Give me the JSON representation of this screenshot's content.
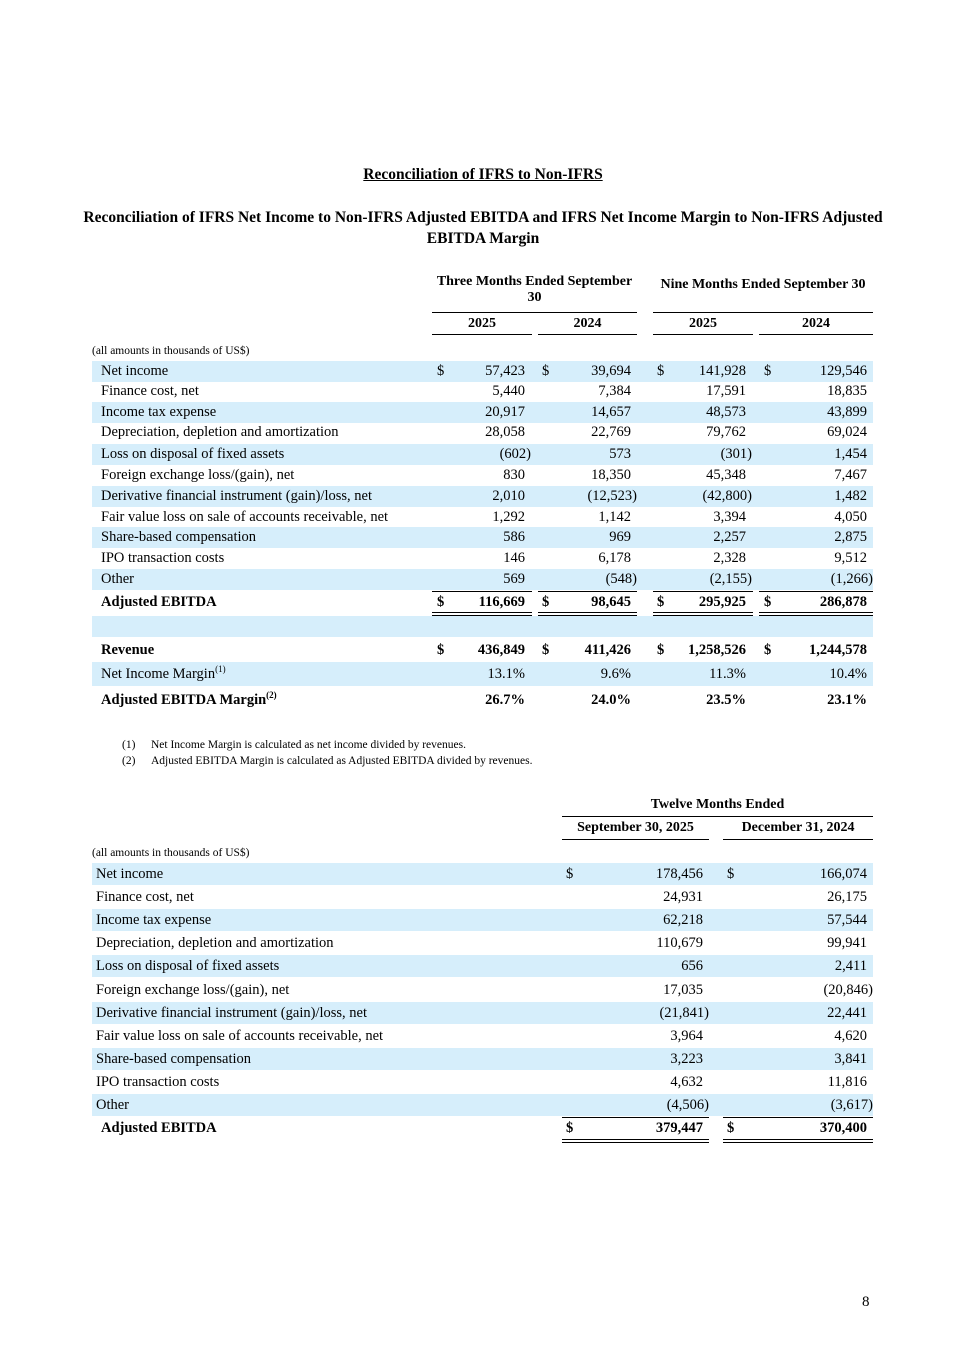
{
  "title": "Reconciliation of IFRS to Non-IFRS",
  "subtitle": "Reconciliation of IFRS Net Income to Non-IFRS Adjusted EBITDA and IFRS Net Income Margin to Non-IFRS Adjusted EBITDA Margin",
  "table1": {
    "group_headers": [
      "Three Months Ended September 30",
      "Nine Months Ended September 30"
    ],
    "years": [
      "2025",
      "2024",
      "2025",
      "2024"
    ],
    "units_note": "(all amounts in thousands of US$)",
    "rows": [
      {
        "label": "Net income",
        "cur": [
          "$",
          "$",
          "$",
          "$"
        ],
        "values": [
          "57,423",
          "39,694",
          "141,928",
          "129,546"
        ]
      },
      {
        "label": "Finance cost, net",
        "cur": [
          "",
          "",
          "",
          ""
        ],
        "values": [
          "5,440",
          "7,384",
          "17,591",
          "18,835"
        ]
      },
      {
        "label": "Income tax expense",
        "cur": [
          "",
          "",
          "",
          ""
        ],
        "values": [
          "20,917",
          "14,657",
          "48,573",
          "43,899"
        ]
      },
      {
        "label": "Depreciation, depletion and amortization",
        "cur": [
          "",
          "",
          "",
          ""
        ],
        "values": [
          "28,058",
          "22,769",
          "79,762",
          "69,024"
        ]
      },
      {
        "label": "Loss on disposal of fixed assets",
        "cur": [
          "",
          "",
          "",
          ""
        ],
        "values": [
          "(602)",
          "573",
          "(301)",
          "1,454"
        ]
      },
      {
        "label": "Foreign exchange loss/(gain), net",
        "cur": [
          "",
          "",
          "",
          ""
        ],
        "values": [
          "830",
          "18,350",
          "45,348",
          "7,467"
        ]
      },
      {
        "label": "Derivative financial instrument (gain)/loss, net",
        "cur": [
          "",
          "",
          "",
          ""
        ],
        "values": [
          "2,010",
          "(12,523)",
          "(42,800)",
          "1,482"
        ]
      },
      {
        "label": "Fair value loss on sale of accounts receivable, net",
        "cur": [
          "",
          "",
          "",
          ""
        ],
        "values": [
          "1,292",
          "1,142",
          "3,394",
          "4,050"
        ]
      },
      {
        "label": "Share-based compensation",
        "cur": [
          "",
          "",
          "",
          ""
        ],
        "values": [
          "586",
          "969",
          "2,257",
          "2,875"
        ]
      },
      {
        "label": "IPO transaction costs",
        "cur": [
          "",
          "",
          "",
          ""
        ],
        "values": [
          "146",
          "6,178",
          "2,328",
          "9,512"
        ]
      },
      {
        "label": "Other",
        "cur": [
          "",
          "",
          "",
          ""
        ],
        "values": [
          "569",
          "(548)",
          "(2,155)",
          "(1,266)"
        ]
      },
      {
        "label": "Adjusted EBITDA",
        "cur": [
          "$",
          "$",
          "$",
          "$"
        ],
        "values": [
          "116,669",
          "98,645",
          "295,925",
          "286,878"
        ]
      },
      {
        "label": "Revenue",
        "cur": [
          "$",
          "$",
          "$",
          "$"
        ],
        "values": [
          "436,849",
          "411,426",
          "1,258,526",
          "1,244,578"
        ]
      },
      {
        "label": "Net Income Margin",
        "sup": "(1)",
        "cur": [
          "",
          "",
          "",
          ""
        ],
        "values": [
          "13.1%",
          "9.6%",
          "11.3%",
          "10.4%"
        ]
      },
      {
        "label": "Adjusted EBITDA Margin",
        "sup": "(2)",
        "cur": [
          "",
          "",
          "",
          ""
        ],
        "values": [
          "26.7%",
          "24.0%",
          "23.5%",
          "23.1%"
        ]
      }
    ]
  },
  "footnotes": [
    {
      "num": "(1)",
      "text": "Net Income Margin is calculated as net income divided by revenues."
    },
    {
      "num": "(2)",
      "text": "Adjusted EBITDA Margin is calculated as Adjusted EBITDA divided by revenues."
    }
  ],
  "table2": {
    "group_header": "Twelve Months Ended",
    "columns": [
      "September 30, 2025",
      "December 31, 2024"
    ],
    "units_note": "(all amounts in thousands of US$)",
    "rows": [
      {
        "label": "Net income",
        "cur": [
          "$",
          "$"
        ],
        "values": [
          "178,456",
          "166,074"
        ]
      },
      {
        "label": "Finance cost, net",
        "cur": [
          "",
          ""
        ],
        "values": [
          "24,931",
          "26,175"
        ]
      },
      {
        "label": "Income tax expense",
        "cur": [
          "",
          ""
        ],
        "values": [
          "62,218",
          "57,544"
        ]
      },
      {
        "label": "Depreciation, depletion and amortization",
        "cur": [
          "",
          ""
        ],
        "values": [
          "110,679",
          "99,941"
        ]
      },
      {
        "label": "Loss on disposal of fixed assets",
        "cur": [
          "",
          ""
        ],
        "values": [
          "656",
          "2,411"
        ]
      },
      {
        "label": "Foreign exchange loss/(gain), net",
        "cur": [
          "",
          ""
        ],
        "values": [
          "17,035",
          "(20,846)"
        ]
      },
      {
        "label": "Derivative financial instrument (gain)/loss, net",
        "cur": [
          "",
          ""
        ],
        "values": [
          "(21,841)",
          "22,441"
        ]
      },
      {
        "label": "Fair value loss on sale of accounts receivable, net",
        "cur": [
          "",
          ""
        ],
        "values": [
          "3,964",
          "4,620"
        ]
      },
      {
        "label": "Share-based compensation",
        "cur": [
          "",
          ""
        ],
        "values": [
          "3,223",
          "3,841"
        ]
      },
      {
        "label": "IPO transaction costs",
        "cur": [
          "",
          ""
        ],
        "values": [
          "4,632",
          "11,816"
        ]
      },
      {
        "label": "Other",
        "cur": [
          "",
          ""
        ],
        "values": [
          "(4,506)",
          "(3,617)"
        ]
      },
      {
        "label": "Adjusted EBITDA",
        "cur": [
          "$",
          "$"
        ],
        "values": [
          "379,447",
          "370,400"
        ]
      }
    ]
  },
  "page_number": "8"
}
